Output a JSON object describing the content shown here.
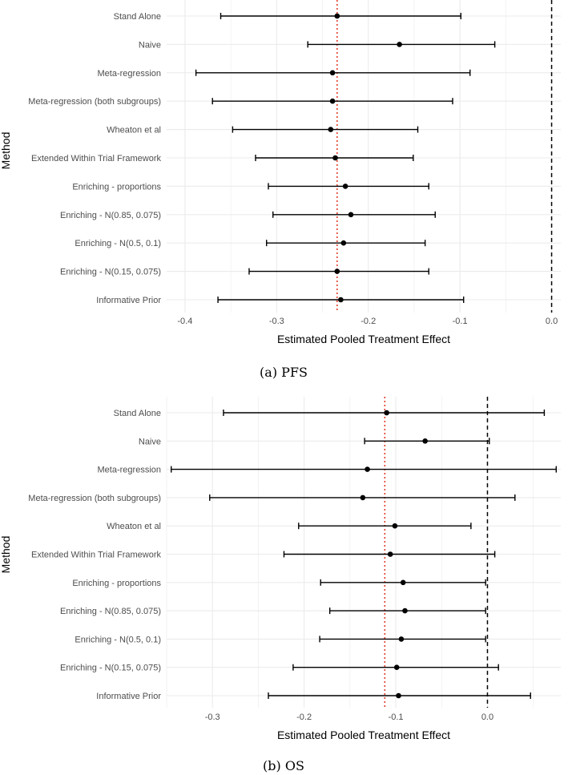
{
  "chart_data": [
    {
      "type": "forest",
      "caption": "(a) PFS",
      "xlabel": "Estimated Pooled Treatment Effect",
      "ylabel": "Method",
      "xlim": [
        -0.42,
        0.01
      ],
      "xticks": [
        -0.4,
        -0.3,
        -0.2,
        -0.1,
        0.0
      ],
      "xtick_labels": [
        "-0.4",
        "-0.3",
        "-0.2",
        "-0.1",
        "0.0"
      ],
      "reference_line": 0.0,
      "pooled_line": -0.234,
      "colors": {
        "reference_line": "#000000",
        "pooled_line": "#e0321e",
        "points": "#000000",
        "grid": "#ebebeb"
      },
      "methods": [
        {
          "name": "Stand Alone",
          "estimate": -0.234,
          "lower": -0.361,
          "upper": -0.099
        },
        {
          "name": "Naive",
          "estimate": -0.166,
          "lower": -0.266,
          "upper": -0.062
        },
        {
          "name": "Meta-regression",
          "estimate": -0.239,
          "lower": -0.388,
          "upper": -0.089
        },
        {
          "name": "Meta-regression (both subgroups)",
          "estimate": -0.239,
          "lower": -0.37,
          "upper": -0.108
        },
        {
          "name": "Wheaton et al",
          "estimate": -0.241,
          "lower": -0.348,
          "upper": -0.146
        },
        {
          "name": "Extended Within Trial Framework",
          "estimate": -0.236,
          "lower": -0.323,
          "upper": -0.151
        },
        {
          "name": "Enriching - proportions",
          "estimate": -0.225,
          "lower": -0.309,
          "upper": -0.134
        },
        {
          "name": "Enriching - N(0.85, 0.075)",
          "estimate": -0.219,
          "lower": -0.304,
          "upper": -0.127
        },
        {
          "name": "Enriching - N(0.5, 0.1)",
          "estimate": -0.227,
          "lower": -0.311,
          "upper": -0.138
        },
        {
          "name": "Enriching - N(0.15, 0.075)",
          "estimate": -0.234,
          "lower": -0.33,
          "upper": -0.134
        },
        {
          "name": "Informative Prior",
          "estimate": -0.23,
          "lower": -0.364,
          "upper": -0.096
        }
      ]
    },
    {
      "type": "forest",
      "caption": "(b) OS",
      "xlabel": "Estimated Pooled Treatment Effect",
      "ylabel": "Method",
      "xlim": [
        -0.35,
        0.08
      ],
      "xticks": [
        -0.3,
        -0.2,
        -0.1,
        0.0
      ],
      "xtick_labels": [
        "-0.3",
        "-0.2",
        "-0.1",
        "0.0"
      ],
      "reference_line": 0.0,
      "pooled_line": -0.112,
      "colors": {
        "reference_line": "#000000",
        "pooled_line": "#e0321e",
        "points": "#000000",
        "grid": "#ebebeb"
      },
      "methods": [
        {
          "name": "Stand Alone",
          "estimate": -0.11,
          "lower": -0.288,
          "upper": 0.062
        },
        {
          "name": "Naive",
          "estimate": -0.068,
          "lower": -0.134,
          "upper": 0.002
        },
        {
          "name": "Meta-regression",
          "estimate": -0.131,
          "lower": -0.345,
          "upper": 0.075
        },
        {
          "name": "Meta-regression (both subgroups)",
          "estimate": -0.136,
          "lower": -0.303,
          "upper": 0.03
        },
        {
          "name": "Wheaton et al",
          "estimate": -0.101,
          "lower": -0.206,
          "upper": -0.018
        },
        {
          "name": "Extended Within Trial Framework",
          "estimate": -0.106,
          "lower": -0.222,
          "upper": 0.008
        },
        {
          "name": "Enriching - proportions",
          "estimate": -0.092,
          "lower": -0.182,
          "upper": -0.002
        },
        {
          "name": "Enriching - N(0.85, 0.075)",
          "estimate": -0.09,
          "lower": -0.172,
          "upper": -0.002
        },
        {
          "name": "Enriching - N(0.5, 0.1)",
          "estimate": -0.094,
          "lower": -0.183,
          "upper": -0.002
        },
        {
          "name": "Enriching - N(0.15, 0.075)",
          "estimate": -0.099,
          "lower": -0.212,
          "upper": 0.012
        },
        {
          "name": "Informative Prior",
          "estimate": -0.097,
          "lower": -0.239,
          "upper": 0.047
        }
      ]
    }
  ]
}
